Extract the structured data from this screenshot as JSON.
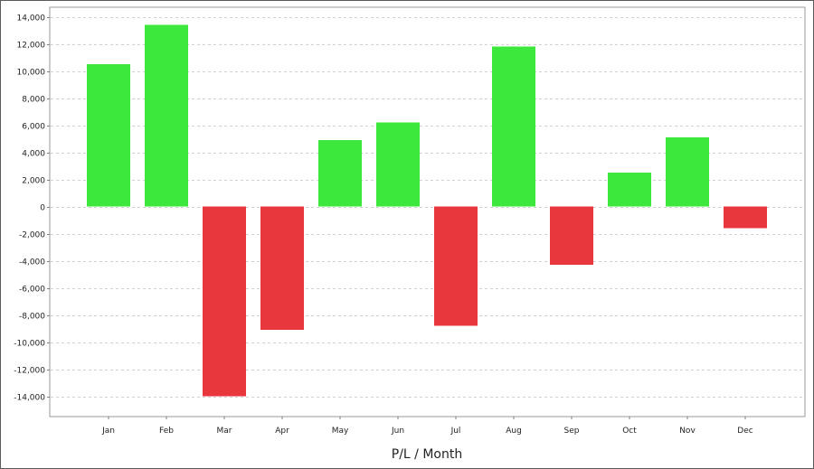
{
  "chart_data": {
    "type": "bar",
    "title": "",
    "xlabel": "P/L / Month",
    "ylabel": "",
    "categories": [
      "Jan",
      "Feb",
      "Mar",
      "Apr",
      "May",
      "Jun",
      "Jul",
      "Aug",
      "Sep",
      "Oct",
      "Nov",
      "Dec"
    ],
    "values": [
      10500,
      13400,
      -14000,
      -9100,
      4900,
      6200,
      -8800,
      11800,
      -4300,
      2500,
      5100,
      -1600
    ],
    "ylim": [
      -15500,
      14700
    ],
    "yticks": [
      -14000,
      -12000,
      -10000,
      -8000,
      -6000,
      -4000,
      -2000,
      0,
      2000,
      4000,
      6000,
      8000,
      10000,
      12000,
      14000
    ],
    "ytick_labels": [
      "-14,000",
      "-12,000",
      "-10,000",
      "-8,000",
      "-6,000",
      "-4,000",
      "-2,000",
      "0",
      "2,000",
      "4,000",
      "6,000",
      "8,000",
      "10,000",
      "12,000",
      "14,000"
    ],
    "grid": true,
    "legend": "none",
    "colors": {
      "positive": "#3de83d",
      "negative": "#e8383d",
      "grid": "#d0d0d0",
      "axis": "#808080"
    }
  }
}
